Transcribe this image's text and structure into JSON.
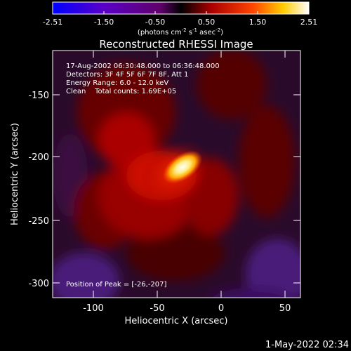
{
  "colorbar": {
    "ticks": [
      "-2.51",
      "-1.50",
      "-0.50",
      "0.50",
      "1.50",
      "2.51"
    ],
    "units_text": "(photons cm",
    "units_exp1": "-2",
    "units_mid": " s",
    "units_exp2": "-1",
    "units_tail": " asec",
    "units_exp3": "-2",
    "units_close": ")",
    "min": -2.51,
    "max": 2.51,
    "colormap": [
      "#0000ff",
      "#5a00c8",
      "#7a0080",
      "#000000",
      "#aa0000",
      "#ff4400",
      "#ffcc00",
      "#ffffff"
    ]
  },
  "plot": {
    "title": "Reconstructed RHESSI Image",
    "info_lines": [
      "17-Aug-2002 06:30:48.000 to 06:36:48.000",
      "Detectors: 3F 4F 5F 6F 7F 8F, Att 1",
      "Energy Range: 6.0 - 12.0 keV",
      "Clean    Total counts: 1.69E+05"
    ],
    "peak_label": "Position of Peak = [-26,-207]",
    "xlabel": "Heliocentric X (arcsec)",
    "ylabel": "Heliocentric Y (arcsec)",
    "xticks": [
      "-100",
      "-50",
      "0",
      "50"
    ],
    "yticks": [
      "-150",
      "-200",
      "-250",
      "-300"
    ]
  },
  "footer": {
    "timestamp": "1-May-2022 02:34"
  }
}
